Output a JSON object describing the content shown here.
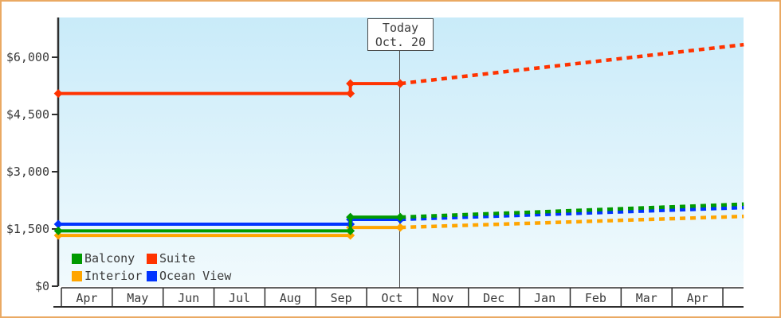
{
  "window": {
    "background": "#ffffff",
    "frame_border_color": "#eaa963"
  },
  "chart_data": {
    "type": "line",
    "title": "",
    "description": "Cabin price history with dashed projection after today",
    "x_axis": {
      "months": [
        "Apr",
        "May",
        "Jun",
        "Jul",
        "Aug",
        "Sep",
        "Oct",
        "Nov",
        "Dec",
        "Jan",
        "Feb",
        "Mar",
        "Apr"
      ]
    },
    "y_axis": {
      "ticks": [
        0,
        1500,
        3000,
        4500,
        6000
      ],
      "tick_labels": [
        "$0",
        "$1,500",
        "$3,000",
        "$4,500",
        "$6,000"
      ],
      "ylim": [
        0,
        7040
      ]
    },
    "xlim": [
      -0.06,
      13.41
    ],
    "grid": false,
    "plot_bg_top": "#c9ebf9",
    "plot_bg_bottom": "#f1fafd",
    "today": {
      "line1": "Today",
      "line2": "Oct. 20",
      "x": 6.66
    },
    "series": [
      {
        "name": "Balcony",
        "color": "#009a00",
        "solid": [
          [
            -0.06,
            1450
          ],
          [
            5.68,
            1450
          ],
          [
            5.68,
            1810
          ],
          [
            6.66,
            1810
          ]
        ],
        "projected": [
          [
            6.66,
            1810
          ],
          [
            13.41,
            2150
          ]
        ],
        "markers": [
          [
            -0.06,
            1450
          ],
          [
            5.68,
            1450
          ],
          [
            5.68,
            1810
          ],
          [
            6.66,
            1810
          ]
        ]
      },
      {
        "name": "Suite",
        "color": "#ff3300",
        "solid": [
          [
            -0.06,
            5050
          ],
          [
            5.68,
            5050
          ],
          [
            5.68,
            5310
          ],
          [
            6.66,
            5310
          ]
        ],
        "projected": [
          [
            6.66,
            5310
          ],
          [
            13.41,
            6330
          ]
        ],
        "markers": [
          [
            -0.06,
            5050
          ],
          [
            5.68,
            5050
          ],
          [
            5.68,
            5310
          ],
          [
            6.66,
            5310
          ]
        ]
      },
      {
        "name": "Interior",
        "color": "#ffa500",
        "solid": [
          [
            -0.06,
            1330
          ],
          [
            5.68,
            1330
          ],
          [
            5.68,
            1540
          ],
          [
            6.66,
            1540
          ]
        ],
        "projected": [
          [
            6.66,
            1540
          ],
          [
            13.41,
            1830
          ]
        ],
        "markers": [
          [
            -0.06,
            1330
          ],
          [
            5.68,
            1330
          ],
          [
            5.68,
            1540
          ],
          [
            6.66,
            1540
          ]
        ]
      },
      {
        "name": "Ocean View",
        "color": "#0033ff",
        "solid": [
          [
            -0.06,
            1625
          ],
          [
            5.68,
            1625
          ],
          [
            5.68,
            1750
          ],
          [
            6.66,
            1750
          ]
        ],
        "projected": [
          [
            6.66,
            1750
          ],
          [
            13.41,
            2060
          ]
        ],
        "markers": [
          [
            -0.06,
            1625
          ],
          [
            5.68,
            1625
          ],
          [
            5.68,
            1750
          ],
          [
            6.66,
            1750
          ]
        ]
      }
    ],
    "draw_order": [
      2,
      3,
      0,
      1
    ],
    "legend": {
      "position": "bottom-left-inside-plot",
      "rows": [
        [
          "Balcony",
          "Suite"
        ],
        [
          "Interior",
          "Ocean View"
        ]
      ]
    }
  }
}
